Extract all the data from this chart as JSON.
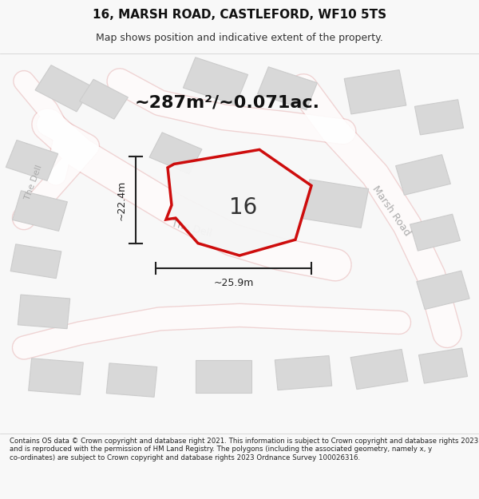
{
  "title": "16, MARSH ROAD, CASTLEFORD, WF10 5TS",
  "subtitle": "Map shows position and indicative extent of the property.",
  "area_text": "~287m²/~0.071ac.",
  "label_16": "16",
  "dim_height": "~22.4m",
  "dim_width": "~25.9m",
  "footer": "Contains OS data © Crown copyright and database right 2021. This information is subject to Crown copyright and database rights 2023 and is reproduced with the permission of HM Land Registry. The polygons (including the associated geometry, namely x, y co-ordinates) are subject to Crown copyright and database rights 2023 Ordnance Survey 100026316.",
  "bg_color": "#f8f8f8",
  "map_bg": "#f0f0f0",
  "road_color": "#e8b0b0",
  "building_color": "#d8d8d8",
  "building_edge": "#cccccc",
  "plot_fill": "#f5f5f5",
  "plot_edge": "#cc0000",
  "road_label_color": "#aaaaaa",
  "dim_color": "#222222",
  "title_color": "#111111",
  "subtitle_color": "#333333",
  "footer_color": "#222222"
}
